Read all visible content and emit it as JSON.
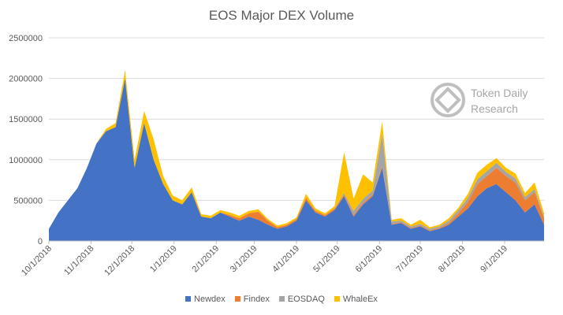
{
  "chart_data": {
    "type": "area",
    "stacked": true,
    "title": "EOS Major DEX Volume",
    "xlabel": "",
    "ylabel": "",
    "ylim": [
      0,
      2500000
    ],
    "yticks": [
      "0",
      "500000",
      "1000000",
      "1500000",
      "2000000",
      "2500000"
    ],
    "xticks": [
      "10/1/2018",
      "11/1/2018",
      "12/1/2018",
      "1/1/2019",
      "2/1/2019",
      "3/1/2019",
      "4/1/2019",
      "5/1/2019",
      "6/1/2019",
      "7/1/2019",
      "8/1/2019",
      "9/1/2019"
    ],
    "x_range": [
      "10/1/2018",
      "9/30/2019"
    ],
    "grid": "horizontal",
    "legend_position": "bottom",
    "x": [
      "10/1/2018",
      "10/8/2018",
      "10/15/2018",
      "10/22/2018",
      "10/29/2018",
      "11/5/2018",
      "11/12/2018",
      "11/19/2018",
      "11/26/2018",
      "12/3/2018",
      "12/10/2018",
      "12/17/2018",
      "12/24/2018",
      "12/31/2018",
      "1/7/2019",
      "1/14/2019",
      "1/21/2019",
      "1/28/2019",
      "2/4/2019",
      "2/11/2019",
      "2/18/2019",
      "2/25/2019",
      "3/4/2019",
      "3/11/2019",
      "3/18/2019",
      "3/25/2019",
      "4/1/2019",
      "4/8/2019",
      "4/15/2019",
      "4/22/2019",
      "4/29/2019",
      "5/6/2019",
      "5/13/2019",
      "5/20/2019",
      "5/27/2019",
      "6/3/2019",
      "6/10/2019",
      "6/17/2019",
      "6/24/2019",
      "7/1/2019",
      "7/8/2019",
      "7/15/2019",
      "7/22/2019",
      "7/29/2019",
      "8/5/2019",
      "8/12/2019",
      "8/19/2019",
      "8/26/2019",
      "9/2/2019",
      "9/9/2019",
      "9/16/2019",
      "9/23/2019",
      "9/30/2019"
    ],
    "series": [
      {
        "name": "Newdex",
        "color": "#4472c4",
        "values": [
          150000,
          350000,
          500000,
          650000,
          900000,
          1200000,
          1350000,
          1400000,
          2000000,
          900000,
          1450000,
          1000000,
          700000,
          500000,
          450000,
          600000,
          300000,
          280000,
          350000,
          300000,
          250000,
          300000,
          260000,
          200000,
          150000,
          180000,
          250000,
          500000,
          350000,
          300000,
          380000,
          550000,
          300000,
          450000,
          550000,
          900000,
          200000,
          220000,
          150000,
          180000,
          120000,
          150000,
          200000,
          300000,
          400000,
          550000,
          650000,
          700000,
          600000,
          500000,
          350000,
          450000,
          200000
        ]
      },
      {
        "name": "Findex",
        "color": "#ed7d31",
        "values": [
          0,
          0,
          0,
          0,
          0,
          0,
          0,
          0,
          0,
          0,
          0,
          0,
          0,
          0,
          0,
          0,
          0,
          0,
          0,
          20000,
          30000,
          40000,
          100000,
          50000,
          20000,
          20000,
          20000,
          30000,
          20000,
          20000,
          20000,
          20000,
          20000,
          20000,
          20000,
          20000,
          10000,
          10000,
          10000,
          10000,
          10000,
          10000,
          20000,
          40000,
          80000,
          150000,
          150000,
          200000,
          200000,
          220000,
          150000,
          150000,
          80000
        ]
      },
      {
        "name": "EOSDAQ",
        "color": "#a5a5a5",
        "values": [
          0,
          0,
          0,
          0,
          0,
          0,
          0,
          0,
          0,
          0,
          0,
          0,
          0,
          0,
          0,
          0,
          0,
          0,
          0,
          0,
          0,
          0,
          0,
          0,
          0,
          0,
          0,
          0,
          0,
          0,
          0,
          20000,
          50000,
          50000,
          50000,
          400000,
          30000,
          20000,
          20000,
          20000,
          20000,
          20000,
          30000,
          40000,
          50000,
          60000,
          60000,
          60000,
          50000,
          50000,
          40000,
          40000,
          20000
        ]
      },
      {
        "name": "WhaleEx",
        "color": "#ffc000",
        "values": [
          0,
          0,
          0,
          0,
          0,
          0,
          30000,
          50000,
          100000,
          100000,
          150000,
          250000,
          100000,
          60000,
          50000,
          60000,
          30000,
          30000,
          30000,
          30000,
          30000,
          30000,
          30000,
          20000,
          20000,
          20000,
          20000,
          50000,
          30000,
          20000,
          30000,
          500000,
          150000,
          300000,
          100000,
          150000,
          20000,
          30000,
          20000,
          50000,
          20000,
          20000,
          30000,
          30000,
          50000,
          80000,
          80000,
          60000,
          50000,
          60000,
          50000,
          80000,
          40000
        ]
      }
    ]
  },
  "watermark": {
    "line1": "Token Daily",
    "line2": "Research",
    "icon": "token-daily-logo-icon"
  }
}
